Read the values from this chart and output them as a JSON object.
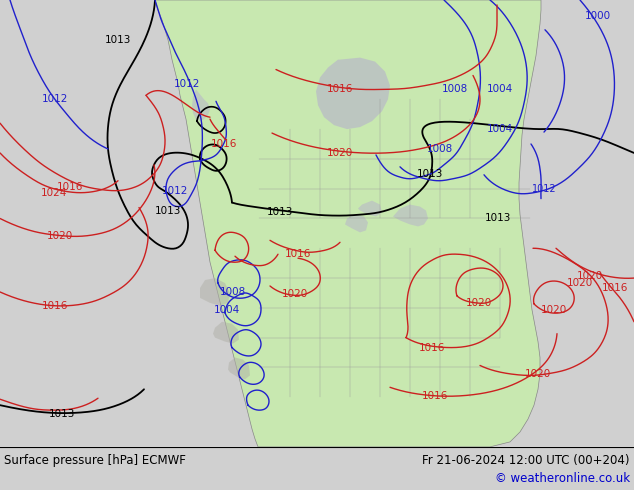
{
  "title_left": "Surface pressure [hPa] ECMWF",
  "title_right": "Fr 21-06-2024 12:00 UTC (00+204)",
  "copyright": "© weatheronline.co.uk",
  "bg_color": "#d0d0d0",
  "land_color": "#c8e8b0",
  "water_color": "#d0d0d0",
  "figsize": [
    6.34,
    4.9
  ],
  "dpi": 100,
  "bottom_bg": "#ffffff",
  "text_color": "#000000",
  "link_color": "#0000cc"
}
